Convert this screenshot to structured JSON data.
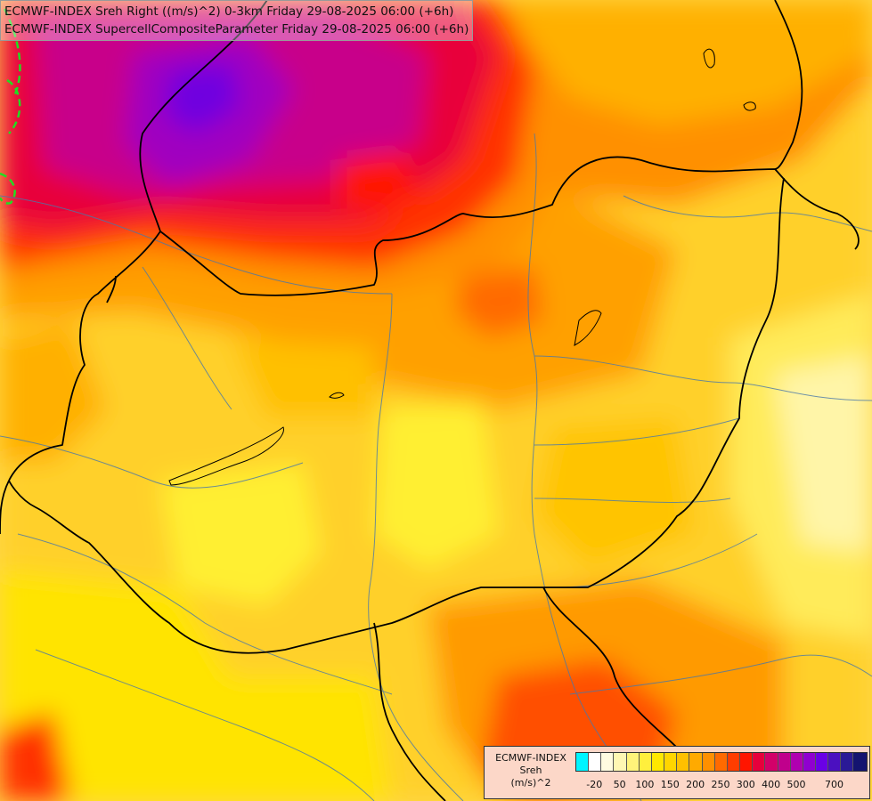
{
  "title": {
    "line1": "ECMWF-INDEX Sreh Right ((m/s)^2) 0-3km Friday 29-08-2025 06:00 (+6h)",
    "line2": "ECMWF-INDEX SupercellCompositeParameter Friday 29-08-2025 06:00 (+6h)"
  },
  "legend": {
    "model": "ECMWF-INDEX",
    "parameter": "Sreh",
    "unit": "(m/s)^2",
    "colors": [
      "#00f5ff",
      "#ffffff",
      "#fffbe0",
      "#fff7b3",
      "#fff37a",
      "#ffef3d",
      "#ffe800",
      "#ffd500",
      "#ffc000",
      "#ffaa00",
      "#ff9000",
      "#ff6a00",
      "#ff3d00",
      "#ff1500",
      "#e6003c",
      "#d20069",
      "#c0008c",
      "#b000b0",
      "#9000d0",
      "#6a00e6",
      "#4b10c0",
      "#2a1a96",
      "#141470"
    ],
    "labels": [
      {
        "text": "-20",
        "index": 1
      },
      {
        "text": "50",
        "index": 3
      },
      {
        "text": "100",
        "index": 5
      },
      {
        "text": "150",
        "index": 7
      },
      {
        "text": "200",
        "index": 9
      },
      {
        "text": "250",
        "index": 11
      },
      {
        "text": "300",
        "index": 13
      },
      {
        "text": "400",
        "index": 15
      },
      {
        "text": "500",
        "index": 17
      },
      {
        "text": "700",
        "index": 20
      }
    ]
  }
}
